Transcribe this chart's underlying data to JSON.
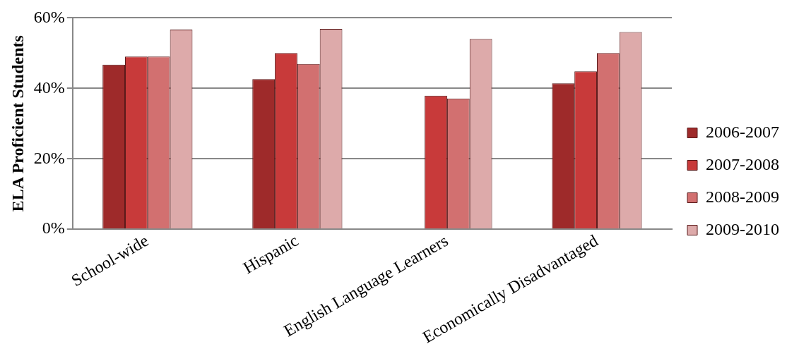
{
  "chart_data": {
    "type": "bar",
    "ylabel": "ELA Proficient Students",
    "categories": [
      "School-wide",
      "Hispanic",
      "English Language Learners",
      "Economically Disadvantaged"
    ],
    "series": [
      {
        "name": "2006-2007",
        "color": "#9e2a2a",
        "values": [
          46.7,
          42.6,
          null,
          41.4
        ]
      },
      {
        "name": "2007-2008",
        "color": "#c83a3a",
        "values": [
          49,
          50,
          37.9,
          44.8
        ]
      },
      {
        "name": "2008-2009",
        "color": "#d27070",
        "values": [
          49,
          46.9,
          37.1,
          50
        ]
      },
      {
        "name": "2009-2010",
        "color": "#ddaaaa",
        "values": [
          56.7,
          56.9,
          54,
          56
        ]
      }
    ],
    "ylim": [
      0,
      60
    ],
    "yticks": [
      {
        "value": 0,
        "label": "0%"
      },
      {
        "value": 20,
        "label": "20%"
      },
      {
        "value": 40,
        "label": "40%"
      },
      {
        "value": 60,
        "label": "60%"
      }
    ],
    "grid": "y",
    "legend": "right"
  }
}
